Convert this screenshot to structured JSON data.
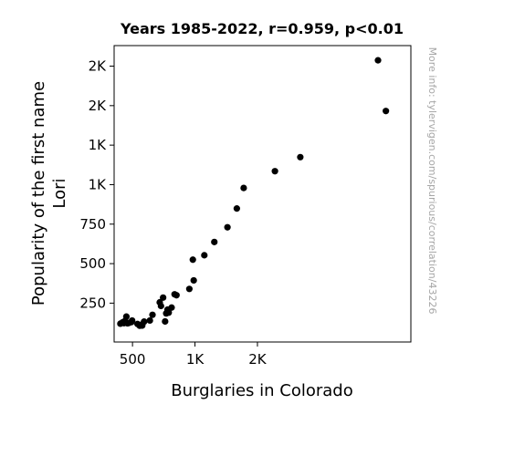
{
  "chart_data": {
    "type": "scatter",
    "title": "Years 1985-2022, r=0.959, p<0.01",
    "xlabel": "Burglaries in Colorado",
    "ylabel_lines": [
      "Popularity of the first name",
      "Lori"
    ],
    "watermark": "More info: tylervigen.com/spurious/correlation/43226",
    "xlim": [
      353,
      2728
    ],
    "ylim": [
      4,
      1880
    ],
    "x_ticks": [
      {
        "value": 500,
        "label": "500"
      },
      {
        "value": 1000,
        "label": "1K"
      },
      {
        "value": 1500,
        "label": "2K"
      }
    ],
    "y_ticks": [
      {
        "value": 250,
        "label": "250"
      },
      {
        "value": 500,
        "label": "500"
      },
      {
        "value": 750,
        "label": "750"
      },
      {
        "value": 1000,
        "label": "1K"
      },
      {
        "value": 1250,
        "label": "1K"
      },
      {
        "value": 1500,
        "label": "2K"
      },
      {
        "value": 1750,
        "label": "2K"
      }
    ],
    "points": [
      {
        "x": 2465,
        "y": 1787
      },
      {
        "x": 2528,
        "y": 1466
      },
      {
        "x": 1843,
        "y": 1174
      },
      {
        "x": 1640,
        "y": 1085
      },
      {
        "x": 1390,
        "y": 979
      },
      {
        "x": 1335,
        "y": 849
      },
      {
        "x": 1260,
        "y": 730
      },
      {
        "x": 1155,
        "y": 637
      },
      {
        "x": 1075,
        "y": 553
      },
      {
        "x": 983,
        "y": 525
      },
      {
        "x": 990,
        "y": 394
      },
      {
        "x": 955,
        "y": 340
      },
      {
        "x": 837,
        "y": 306
      },
      {
        "x": 852,
        "y": 300
      },
      {
        "x": 745,
        "y": 285
      },
      {
        "x": 718,
        "y": 255
      },
      {
        "x": 728,
        "y": 232
      },
      {
        "x": 813,
        "y": 222
      },
      {
        "x": 780,
        "y": 209
      },
      {
        "x": 790,
        "y": 190
      },
      {
        "x": 770,
        "y": 185
      },
      {
        "x": 660,
        "y": 176
      },
      {
        "x": 761,
        "y": 134
      },
      {
        "x": 639,
        "y": 140
      },
      {
        "x": 593,
        "y": 133
      },
      {
        "x": 540,
        "y": 118
      },
      {
        "x": 578,
        "y": 116
      },
      {
        "x": 558,
        "y": 107
      },
      {
        "x": 578,
        "y": 108
      },
      {
        "x": 497,
        "y": 140
      },
      {
        "x": 491,
        "y": 130
      },
      {
        "x": 471,
        "y": 125
      },
      {
        "x": 451,
        "y": 165
      },
      {
        "x": 440,
        "y": 137
      },
      {
        "x": 432,
        "y": 123
      },
      {
        "x": 461,
        "y": 122
      },
      {
        "x": 420,
        "y": 128
      },
      {
        "x": 403,
        "y": 120
      }
    ]
  }
}
